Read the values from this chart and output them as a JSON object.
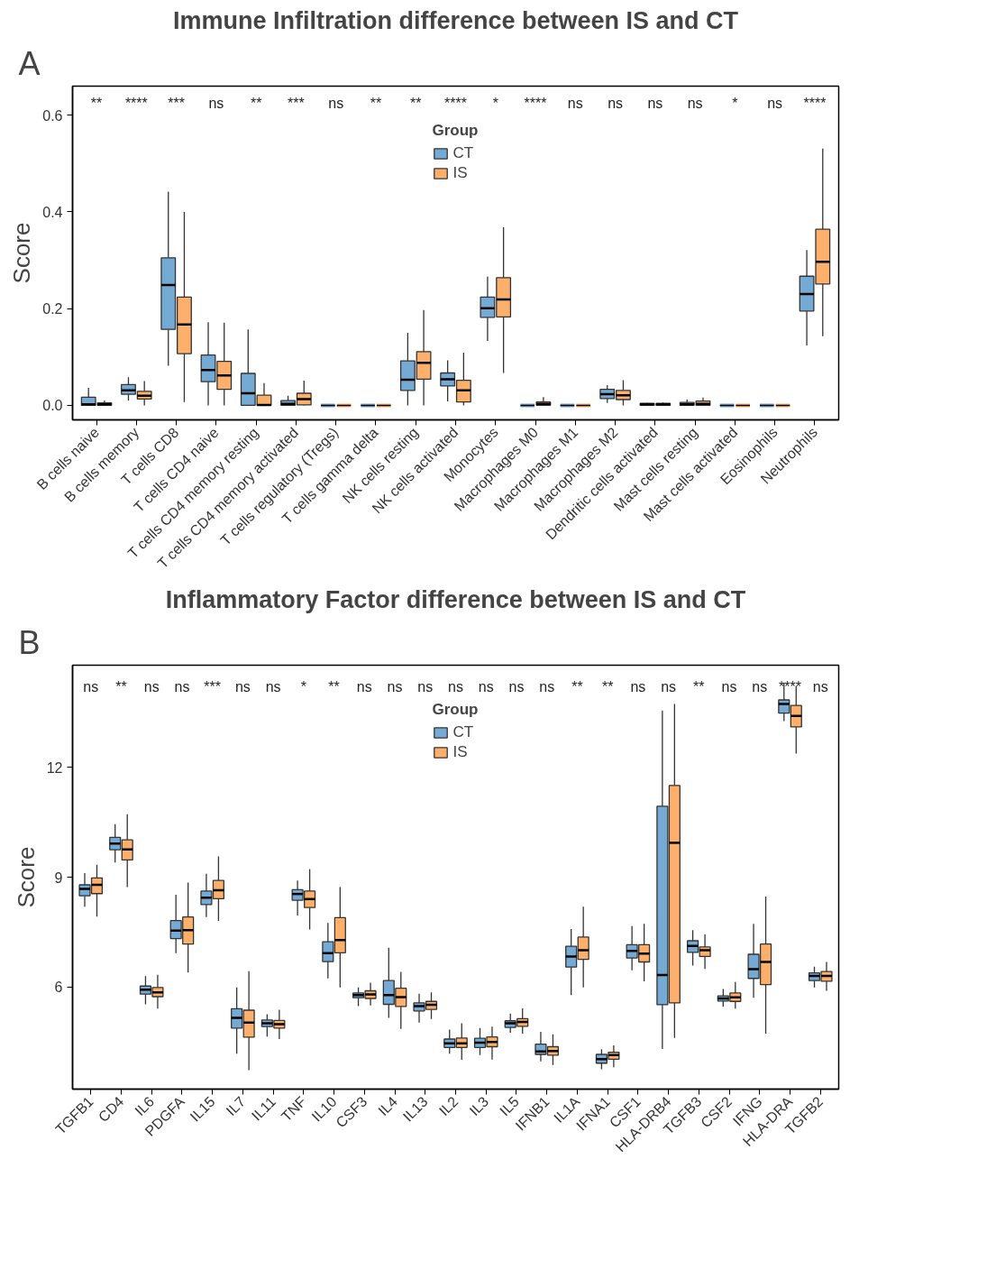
{
  "chart_data": [
    {
      "type": "box",
      "title": "Immune Infiltration difference between IS and CT",
      "ylabel": "Score",
      "legend_title": "Group",
      "legend": "top",
      "grid": false,
      "categories": [
        "B cells naive",
        "B cells memory",
        "T cells CD8",
        "T cells CD4 naive",
        "T cells CD4 memory resting",
        "T cells CD4 memory activated",
        "T cells regulatory (Tregs)",
        "T cells gamma delta",
        "NK cells resting",
        "NK cells activated",
        "Monocytes",
        "Macrophages M0",
        "Macrophages M1",
        "Macrophages M2",
        "Dendritic cells activated",
        "Mast cells resting",
        "Mast cells activated",
        "Eosinophils",
        "Neutrophils"
      ],
      "ylim": [
        -0.03,
        0.66
      ],
      "yticks": [
        {
          "value": 0,
          "label": "0.0"
        },
        {
          "value": 0.2,
          "label": "0.2"
        },
        {
          "value": 0.4,
          "label": "0.4"
        },
        {
          "value": 0.6,
          "label": "0.6"
        }
      ],
      "series": [
        {
          "name": "CT",
          "color": "#74aad3",
          "boxes": [
            {
              "low": 0,
              "q1": 0,
              "median": 0.002,
              "q3": 0.017,
              "high": 0.036
            },
            {
              "low": 0.01,
              "q1": 0.023,
              "median": 0.031,
              "q3": 0.043,
              "high": 0.058
            },
            {
              "low": 0.082,
              "q1": 0.157,
              "median": 0.249,
              "q3": 0.305,
              "high": 0.442
            },
            {
              "low": 0,
              "q1": 0.049,
              "median": 0.073,
              "q3": 0.104,
              "high": 0.172
            },
            {
              "low": 0,
              "q1": 0,
              "median": 0.025,
              "q3": 0.066,
              "high": 0.157
            },
            {
              "low": 0,
              "q1": 0,
              "median": 0.003,
              "q3": 0.01,
              "high": 0.02
            },
            {
              "low": 0,
              "q1": 0,
              "median": 0,
              "q3": 0,
              "high": 0
            },
            {
              "low": 0,
              "q1": 0,
              "median": 0,
              "q3": 0,
              "high": 0
            },
            {
              "low": 0,
              "q1": 0.031,
              "median": 0.053,
              "q3": 0.092,
              "high": 0.15
            },
            {
              "low": 0.008,
              "q1": 0.04,
              "median": 0.054,
              "q3": 0.067,
              "high": 0.093
            },
            {
              "low": 0.133,
              "q1": 0.182,
              "median": 0.201,
              "q3": 0.224,
              "high": 0.266
            },
            {
              "low": 0,
              "q1": 0,
              "median": 0,
              "q3": 0,
              "high": 0
            },
            {
              "low": 0,
              "q1": 0,
              "median": 0,
              "q3": 0,
              "high": 0
            },
            {
              "low": 0.005,
              "q1": 0.014,
              "median": 0.023,
              "q3": 0.033,
              "high": 0.042
            },
            {
              "low": 0,
              "q1": 0,
              "median": 0.002,
              "q3": 0.004,
              "high": 0.005
            },
            {
              "low": 0,
              "q1": 0,
              "median": 0.002,
              "q3": 0.006,
              "high": 0.012
            },
            {
              "low": 0,
              "q1": 0,
              "median": 0,
              "q3": 0,
              "high": 0
            },
            {
              "low": 0,
              "q1": 0,
              "median": 0,
              "q3": 0,
              "high": 0
            },
            {
              "low": 0.124,
              "q1": 0.195,
              "median": 0.23,
              "q3": 0.267,
              "high": 0.321
            }
          ]
        },
        {
          "name": "IS",
          "color": "#fdb06b",
          "boxes": [
            {
              "low": 0,
              "q1": 0,
              "median": 0.002,
              "q3": 0.005,
              "high": 0.01
            },
            {
              "low": 0,
              "q1": 0.013,
              "median": 0.02,
              "q3": 0.029,
              "high": 0.05
            },
            {
              "low": 0.007,
              "q1": 0.107,
              "median": 0.167,
              "q3": 0.224,
              "high": 0.4
            },
            {
              "low": 0,
              "q1": 0.033,
              "median": 0.062,
              "q3": 0.091,
              "high": 0.171
            },
            {
              "low": 0,
              "q1": 0,
              "median": 0.001,
              "q3": 0.021,
              "high": 0.046
            },
            {
              "low": 0,
              "q1": 0.001,
              "median": 0.013,
              "q3": 0.025,
              "high": 0.051
            },
            {
              "low": 0,
              "q1": 0,
              "median": 0,
              "q3": 0,
              "high": 0
            },
            {
              "low": 0,
              "q1": 0,
              "median": 0,
              "q3": 0,
              "high": 0
            },
            {
              "low": 0,
              "q1": 0.054,
              "median": 0.088,
              "q3": 0.111,
              "high": 0.197
            },
            {
              "low": 0,
              "q1": 0.007,
              "median": 0.031,
              "q3": 0.052,
              "high": 0.109
            },
            {
              "low": 0.067,
              "q1": 0.183,
              "median": 0.219,
              "q3": 0.264,
              "high": 0.368
            },
            {
              "low": 0,
              "q1": 0,
              "median": 0.003,
              "q3": 0.007,
              "high": 0.017
            },
            {
              "low": 0,
              "q1": 0,
              "median": 0,
              "q3": 0,
              "high": 0
            },
            {
              "low": 0,
              "q1": 0.012,
              "median": 0.021,
              "q3": 0.031,
              "high": 0.052
            },
            {
              "low": 0,
              "q1": 0,
              "median": 0.002,
              "q3": 0.004,
              "high": 0.006
            },
            {
              "low": 0,
              "q1": 0,
              "median": 0.003,
              "q3": 0.009,
              "high": 0.016
            },
            {
              "low": 0,
              "q1": 0,
              "median": 0,
              "q3": 0,
              "high": 0
            },
            {
              "low": 0,
              "q1": 0,
              "median": 0,
              "q3": 0,
              "high": 0
            },
            {
              "low": 0.143,
              "q1": 0.251,
              "median": 0.297,
              "q3": 0.364,
              "high": 0.531
            }
          ]
        }
      ],
      "annotations": [
        "A",
        "**",
        "****",
        "***",
        "ns",
        "**",
        "***",
        "ns",
        "**",
        "**",
        "****",
        "*",
        "****",
        "ns",
        "ns",
        "ns",
        "ns",
        "*",
        "ns",
        "****"
      ]
    },
    {
      "type": "box",
      "title": "Inflammatory Factor difference between IS and CT",
      "ylabel": "Score",
      "legend_title": "Group",
      "legend": "top",
      "grid": false,
      "categories": [
        "TGFB1",
        "CD4",
        "IL6",
        "PDGFA",
        "IL15",
        "IL7",
        "IL11",
        "TNF",
        "IL10",
        "CSF3",
        "IL4",
        "IL13",
        "IL2",
        "IL3",
        "IL5",
        "IFNB1",
        "IL1A",
        "IFNA1",
        "CSF1",
        "HLA-DRB4",
        "TGFB3",
        "CSF2",
        "IFNG",
        "HLA-DRA",
        "TGFB2"
      ],
      "ylim": [
        3.2,
        14.8
      ],
      "yticks": [
        6,
        9,
        12
      ],
      "series": [
        {
          "name": "CT",
          "color": "#74aad3",
          "boxes": [
            {
              "low": 8.19,
              "q1": 8.49,
              "median": 8.68,
              "q3": 8.79,
              "high": 9.11
            },
            {
              "low": 9.4,
              "q1": 9.75,
              "median": 9.92,
              "q3": 10.09,
              "high": 10.45
            },
            {
              "low": 5.52,
              "q1": 5.8,
              "median": 5.92,
              "q3": 6.02,
              "high": 6.29
            },
            {
              "low": 6.92,
              "q1": 7.32,
              "median": 7.54,
              "q3": 7.81,
              "high": 8.52
            },
            {
              "low": 7.91,
              "q1": 8.25,
              "median": 8.44,
              "q3": 8.62,
              "high": 9.09
            },
            {
              "low": 4.17,
              "q1": 4.87,
              "median": 5.15,
              "q3": 5.4,
              "high": 5.98
            },
            {
              "low": 4.64,
              "q1": 4.91,
              "median": 5.0,
              "q3": 5.09,
              "high": 5.25
            },
            {
              "low": 7.95,
              "q1": 8.37,
              "median": 8.54,
              "q3": 8.66,
              "high": 8.91
            },
            {
              "low": 6.23,
              "q1": 6.69,
              "median": 6.92,
              "q3": 7.23,
              "high": 7.75
            },
            {
              "low": 5.47,
              "q1": 5.7,
              "median": 5.77,
              "q3": 5.83,
              "high": 5.98
            },
            {
              "low": 5.15,
              "q1": 5.52,
              "median": 5.77,
              "q3": 6.17,
              "high": 7.07
            },
            {
              "low": 5.02,
              "q1": 5.34,
              "median": 5.47,
              "q3": 5.56,
              "high": 5.81
            },
            {
              "low": 4.17,
              "q1": 4.34,
              "median": 4.45,
              "q3": 4.57,
              "high": 4.83
            },
            {
              "low": 4.13,
              "q1": 4.34,
              "median": 4.47,
              "q3": 4.59,
              "high": 4.87
            },
            {
              "low": 4.74,
              "q1": 4.89,
              "median": 5.0,
              "q3": 5.07,
              "high": 5.27
            },
            {
              "low": 3.96,
              "q1": 4.15,
              "median": 4.23,
              "q3": 4.43,
              "high": 4.77
            },
            {
              "low": 5.77,
              "q1": 6.54,
              "median": 6.83,
              "q3": 7.11,
              "high": 7.58
            },
            {
              "low": 3.74,
              "q1": 3.91,
              "median": 4.02,
              "q3": 4.15,
              "high": 4.29
            },
            {
              "low": 6.45,
              "q1": 6.79,
              "median": 6.98,
              "q3": 7.15,
              "high": 7.66
            },
            {
              "low": 4.3,
              "q1": 5.51,
              "median": 6.32,
              "q3": 10.94,
              "high": 13.56
            },
            {
              "low": 6.58,
              "q1": 6.94,
              "median": 7.12,
              "q3": 7.26,
              "high": 7.55
            },
            {
              "low": 5.46,
              "q1": 5.61,
              "median": 5.68,
              "q3": 5.75,
              "high": 5.94
            },
            {
              "low": 5.7,
              "q1": 6.23,
              "median": 6.48,
              "q3": 6.89,
              "high": 7.72
            },
            {
              "low": 13.27,
              "q1": 13.49,
              "median": 13.74,
              "q3": 13.85,
              "high": 14.32
            },
            {
              "low": 5.98,
              "q1": 6.17,
              "median": 6.3,
              "q3": 6.38,
              "high": 6.55
            }
          ]
        },
        {
          "name": "IS",
          "color": "#fdb06b",
          "boxes": [
            {
              "low": 7.92,
              "q1": 8.55,
              "median": 8.79,
              "q3": 8.98,
              "high": 9.34
            },
            {
              "low": 8.73,
              "q1": 9.47,
              "median": 9.76,
              "q3": 10.02,
              "high": 10.72
            },
            {
              "low": 5.4,
              "q1": 5.73,
              "median": 5.85,
              "q3": 5.98,
              "high": 6.33
            },
            {
              "low": 6.39,
              "q1": 7.17,
              "median": 7.55,
              "q3": 7.91,
              "high": 8.85
            },
            {
              "low": 7.8,
              "q1": 8.41,
              "median": 8.64,
              "q3": 8.91,
              "high": 9.57
            },
            {
              "low": 3.72,
              "q1": 4.62,
              "median": 5.02,
              "q3": 5.36,
              "high": 6.43
            },
            {
              "low": 4.57,
              "q1": 4.87,
              "median": 4.98,
              "q3": 5.08,
              "high": 5.37
            },
            {
              "low": 7.57,
              "q1": 8.17,
              "median": 8.4,
              "q3": 8.62,
              "high": 9.22
            },
            {
              "low": 5.98,
              "q1": 6.93,
              "median": 7.28,
              "q3": 7.89,
              "high": 8.73
            },
            {
              "low": 5.49,
              "q1": 5.68,
              "median": 5.79,
              "q3": 5.89,
              "high": 6.11
            },
            {
              "low": 4.85,
              "q1": 5.46,
              "median": 5.72,
              "q3": 5.96,
              "high": 6.41
            },
            {
              "low": 5.12,
              "q1": 5.38,
              "median": 5.51,
              "q3": 5.6,
              "high": 5.85
            },
            {
              "low": 4.0,
              "q1": 4.34,
              "median": 4.45,
              "q3": 4.6,
              "high": 5.0
            },
            {
              "low": 4.01,
              "q1": 4.36,
              "median": 4.49,
              "q3": 4.63,
              "high": 4.91
            },
            {
              "low": 4.72,
              "q1": 4.92,
              "median": 5.04,
              "q3": 5.13,
              "high": 5.41
            },
            {
              "low": 3.86,
              "q1": 4.13,
              "median": 4.24,
              "q3": 4.36,
              "high": 4.7
            },
            {
              "low": 5.98,
              "q1": 6.75,
              "median": 7.0,
              "q3": 7.36,
              "high": 8.19
            },
            {
              "low": 3.8,
              "q1": 4.02,
              "median": 4.13,
              "q3": 4.21,
              "high": 4.4
            },
            {
              "low": 6.15,
              "q1": 6.68,
              "median": 6.91,
              "q3": 7.15,
              "high": 7.72
            },
            {
              "low": 4.6,
              "q1": 5.56,
              "median": 9.94,
              "q3": 11.51,
              "high": 13.74
            },
            {
              "low": 6.49,
              "q1": 6.83,
              "median": 7.0,
              "q3": 7.09,
              "high": 7.43
            },
            {
              "low": 5.4,
              "q1": 5.6,
              "median": 5.71,
              "q3": 5.83,
              "high": 6.13
            },
            {
              "low": 4.72,
              "q1": 6.06,
              "median": 6.68,
              "q3": 7.17,
              "high": 8.47
            },
            {
              "low": 12.38,
              "q1": 13.11,
              "median": 13.41,
              "q3": 13.7,
              "high": 14.23
            },
            {
              "low": 5.89,
              "q1": 6.15,
              "median": 6.3,
              "q3": 6.42,
              "high": 6.68
            }
          ]
        }
      ],
      "annotations": [
        "B",
        "ns",
        "**",
        "ns",
        "ns",
        "***",
        "ns",
        "ns",
        "*",
        "**",
        "ns",
        "ns",
        "ns",
        "ns",
        "ns",
        "ns",
        "ns",
        "**",
        "**",
        "ns",
        "ns",
        "**",
        "ns",
        "ns",
        "****",
        "ns"
      ]
    }
  ]
}
